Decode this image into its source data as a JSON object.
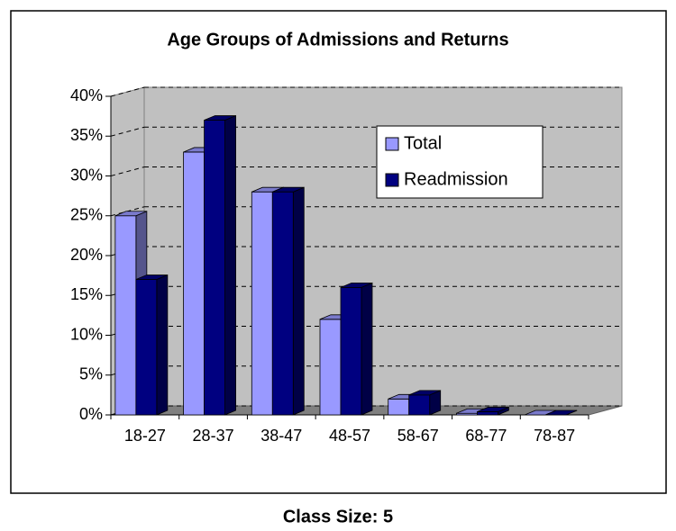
{
  "chart_data": {
    "type": "bar3d",
    "title": "Age Groups of Admissions and Returns",
    "caption": "Class Size: 5",
    "categories": [
      "18-27",
      "28-37",
      "38-47",
      "48-57",
      "58-67",
      "68-77",
      "78-87"
    ],
    "series": [
      {
        "name": "Total",
        "color": "#9999ff",
        "values": [
          25,
          33,
          28,
          12,
          2,
          0.2,
          0
        ]
      },
      {
        "name": "Readmission",
        "color": "#000080",
        "values": [
          17,
          37,
          28,
          16,
          2.5,
          0.4,
          0
        ]
      }
    ],
    "ylim": [
      0,
      40
    ],
    "yticks": [
      {
        "value": 0,
        "label": "0%"
      },
      {
        "value": 5,
        "label": "5%"
      },
      {
        "value": 10,
        "label": "10%"
      },
      {
        "value": 15,
        "label": "15%"
      },
      {
        "value": 20,
        "label": "20%"
      },
      {
        "value": 25,
        "label": "25%"
      },
      {
        "value": 30,
        "label": "30%"
      },
      {
        "value": 35,
        "label": "35%"
      },
      {
        "value": 40,
        "label": "40%"
      }
    ],
    "grid": true,
    "legend": "upper right"
  }
}
